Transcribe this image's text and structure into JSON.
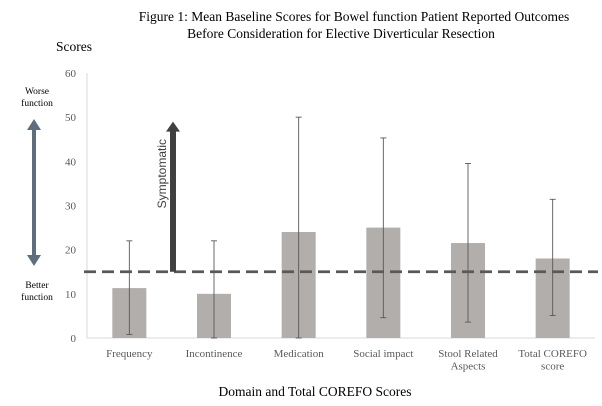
{
  "chart_data": {
    "type": "bar",
    "title_lines": [
      "Figure 1: Mean Baseline Scores for Bowel function Patient Reported Outcomes",
      "Before Consideration for Elective Diverticular Resection"
    ],
    "ylabel": "Scores",
    "xlabel": "Domain and Total COREFO Scores",
    "ylim": [
      0,
      60
    ],
    "yticks": [
      0,
      10,
      20,
      30,
      40,
      50,
      60
    ],
    "grid": false,
    "categories": [
      [
        "Frequency"
      ],
      [
        "Incontinence"
      ],
      [
        "Medication"
      ],
      [
        "Social impact"
      ],
      [
        "Stool Related",
        "Aspects"
      ],
      [
        "Total COREFO",
        "score"
      ]
    ],
    "values": [
      11.3,
      10.0,
      24.0,
      25.0,
      21.5,
      18.0
    ],
    "error_low": [
      0.8,
      0.0,
      0.0,
      4.6,
      3.6,
      5.1
    ],
    "error_high": [
      22.0,
      22.0,
      50.0,
      45.3,
      39.5,
      31.4
    ],
    "threshold": 15,
    "annotations": {
      "worse_lines": [
        "Worse",
        "function"
      ],
      "better_lines": [
        "Better",
        "function"
      ],
      "symptomatic": "Symptomatic",
      "symptomatic_from": 15,
      "symptomatic_to": 49
    },
    "colors": {
      "bar": "#b1aeab",
      "error": "#595959",
      "threshold": "#595959",
      "range_arrow": "#5e6e7c",
      "symptomatic_arrow": "#404040",
      "axis": "#d9d9d9",
      "text": "#000000",
      "tick_text": "#595959"
    }
  }
}
